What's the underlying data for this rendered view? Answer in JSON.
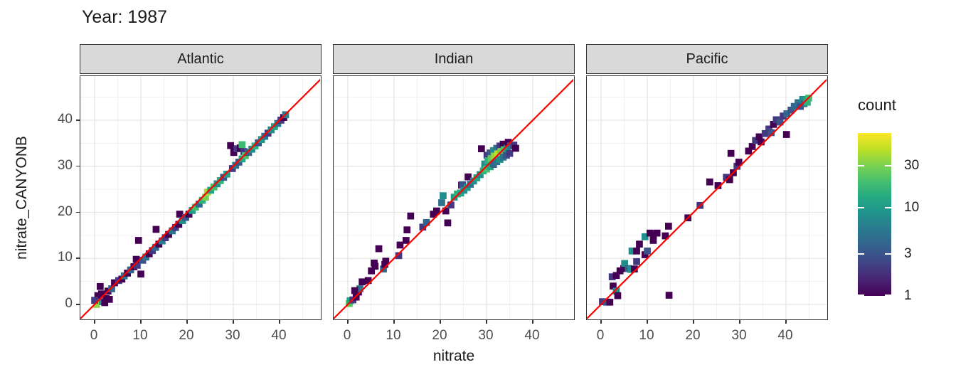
{
  "title": "Year: 1987",
  "chart_data": {
    "type": "heatmap",
    "subtype": "geom_bin2d facet scatter vs identity line",
    "title": "Year: 1987",
    "xlabel": "nitrate",
    "ylabel": "nitrate_CANYONB",
    "x_ticks": [
      0,
      10,
      20,
      30,
      40
    ],
    "y_ticks": [
      0,
      10,
      20,
      30,
      40
    ],
    "x_minor_ticks": [
      5,
      15,
      25,
      35,
      45
    ],
    "y_minor_ticks": [
      5,
      15,
      25,
      35,
      45
    ],
    "x_range": [
      -3.1,
      49.2
    ],
    "y_range": [
      -3.6,
      49.6
    ],
    "grid": true,
    "bin_size": 1.5,
    "identity_line": {
      "slope": 1,
      "intercept": 0,
      "color": "#ff0000"
    },
    "legend": {
      "title": "count",
      "position": "right",
      "scale": "log",
      "ticks": [
        30,
        10,
        3,
        1
      ],
      "min": 1,
      "max": 70
    },
    "viridis_palette": [
      "#440154",
      "#482475",
      "#414487",
      "#35608d",
      "#2a788e",
      "#21918c",
      "#22a884",
      "#44bf70",
      "#7ad151",
      "#bddf26",
      "#fde725"
    ],
    "panels": [
      {
        "name": "Atlantic",
        "bins": [
          [
            0.4,
            0.0,
            35
          ],
          [
            1.7,
            0.6,
            8
          ],
          [
            0.7,
            1.9,
            1
          ],
          [
            1.2,
            3.9,
            1
          ],
          [
            0.0,
            0.9,
            2
          ],
          [
            1.5,
            2.3,
            1
          ],
          [
            2.2,
            0.4,
            1
          ],
          [
            2.5,
            1.3,
            1
          ],
          [
            3.2,
            1.1,
            1
          ],
          [
            2.9,
            2.9,
            1
          ],
          [
            3.7,
            3.4,
            4
          ],
          [
            4.3,
            4.7,
            1
          ],
          [
            5.2,
            5.2,
            2
          ],
          [
            5.9,
            5.5,
            1
          ],
          [
            6.4,
            6.2,
            5
          ],
          [
            7.1,
            6.8,
            1
          ],
          [
            7.8,
            7.5,
            4
          ],
          [
            8.5,
            8.2,
            1
          ],
          [
            9.2,
            8.5,
            2
          ],
          [
            9.0,
            9.8,
            1
          ],
          [
            9.5,
            13.9,
            1
          ],
          [
            10.0,
            6.6,
            1
          ],
          [
            10.4,
            9.6,
            3
          ],
          [
            11.1,
            10.3,
            5
          ],
          [
            11.8,
            11.0,
            1
          ],
          [
            12.5,
            11.7,
            2
          ],
          [
            13.2,
            12.4,
            4
          ],
          [
            13.3,
            16.3,
            1
          ],
          [
            13.9,
            13.1,
            1
          ],
          [
            14.6,
            13.8,
            6
          ],
          [
            15.3,
            14.5,
            2
          ],
          [
            16.0,
            15.2,
            1
          ],
          [
            16.8,
            16.0,
            5
          ],
          [
            17.5,
            16.7,
            2
          ],
          [
            18.2,
            17.4,
            1
          ],
          [
            18.4,
            19.6,
            1
          ],
          [
            19.0,
            18.2,
            8
          ],
          [
            19.7,
            18.9,
            3
          ],
          [
            20.4,
            19.6,
            1
          ],
          [
            21.1,
            20.4,
            10
          ],
          [
            21.8,
            21.1,
            20
          ],
          [
            22.6,
            21.8,
            4
          ],
          [
            23.3,
            22.6,
            15
          ],
          [
            24.0,
            23.3,
            30
          ],
          [
            24.4,
            24.4,
            40
          ],
          [
            25.1,
            24.8,
            12
          ],
          [
            25.8,
            25.5,
            20
          ],
          [
            26.5,
            26.2,
            8
          ],
          [
            27.2,
            26.9,
            15
          ],
          [
            27.9,
            27.6,
            3
          ],
          [
            28.6,
            28.3,
            10
          ],
          [
            29.8,
            29.5,
            2
          ],
          [
            30.5,
            30.2,
            5
          ],
          [
            29.4,
            34.5,
            1
          ],
          [
            30.1,
            33.0,
            1
          ],
          [
            30.8,
            33.8,
            2
          ],
          [
            31.5,
            34.0,
            1
          ],
          [
            31.9,
            34.7,
            18
          ],
          [
            31.2,
            30.9,
            3
          ],
          [
            31.9,
            31.6,
            12
          ],
          [
            32.3,
            33.2,
            2
          ],
          [
            32.6,
            32.3,
            20
          ],
          [
            33.3,
            33.0,
            4
          ],
          [
            34.0,
            33.7,
            8
          ],
          [
            34.7,
            34.4,
            15
          ],
          [
            35.4,
            35.1,
            3
          ],
          [
            36.1,
            35.8,
            10
          ],
          [
            36.8,
            36.5,
            5
          ],
          [
            37.5,
            37.2,
            2
          ],
          [
            38.2,
            37.9,
            8
          ],
          [
            38.9,
            38.6,
            12
          ],
          [
            39.6,
            39.3,
            5
          ],
          [
            40.3,
            40.0,
            2
          ],
          [
            40.9,
            40.6,
            1
          ],
          [
            41.3,
            41.2,
            6
          ]
        ]
      },
      {
        "name": "Indian",
        "bins": [
          [
            0.3,
            0.2,
            25
          ],
          [
            0.5,
            0.8,
            12
          ],
          [
            1.1,
            1.0,
            2
          ],
          [
            1.8,
            1.6,
            1
          ],
          [
            2.3,
            2.7,
            1
          ],
          [
            2.6,
            3.4,
            5
          ],
          [
            1.5,
            3.0,
            1
          ],
          [
            3.1,
            4.9,
            1
          ],
          [
            4.4,
            5.2,
            1
          ],
          [
            5.1,
            7.3,
            1
          ],
          [
            5.7,
            9.0,
            1
          ],
          [
            5.9,
            8.3,
            1
          ],
          [
            6.7,
            12.1,
            1
          ],
          [
            7.7,
            7.7,
            4
          ],
          [
            8.0,
            8.7,
            1
          ],
          [
            8.2,
            9.4,
            1
          ],
          [
            11.0,
            10.6,
            2
          ],
          [
            11.3,
            12.9,
            1
          ],
          [
            12.6,
            13.9,
            1
          ],
          [
            12.8,
            16.2,
            1
          ],
          [
            13.6,
            19.2,
            1
          ],
          [
            16.2,
            16.8,
            2
          ],
          [
            17.0,
            17.8,
            4
          ],
          [
            18.5,
            19.6,
            1
          ],
          [
            19.2,
            20.3,
            1
          ],
          [
            20.3,
            22.1,
            5
          ],
          [
            20.6,
            23.6,
            8
          ],
          [
            21.2,
            20.3,
            1
          ],
          [
            21.6,
            17.7,
            1
          ],
          [
            22.3,
            21.6,
            2
          ],
          [
            23.0,
            23.3,
            10
          ],
          [
            23.7,
            24.0,
            15
          ],
          [
            24.4,
            24.2,
            12
          ],
          [
            24.6,
            25.9,
            1
          ],
          [
            24.8,
            26.0,
            3
          ],
          [
            25.1,
            24.8,
            8
          ],
          [
            25.8,
            25.4,
            10
          ],
          [
            26.0,
            27.7,
            1
          ],
          [
            26.5,
            26.1,
            5
          ],
          [
            27.2,
            26.8,
            8
          ],
          [
            27.9,
            27.5,
            12
          ],
          [
            28.6,
            28.2,
            8
          ],
          [
            28.9,
            33.8,
            1
          ],
          [
            29.3,
            29.0,
            15
          ],
          [
            29.6,
            30.5,
            8
          ],
          [
            30.0,
            29.4,
            20
          ],
          [
            30.1,
            32.4,
            2
          ],
          [
            30.3,
            31.2,
            15
          ],
          [
            30.8,
            29.9,
            12
          ],
          [
            30.8,
            32.9,
            3
          ],
          [
            31.0,
            31.7,
            25
          ],
          [
            31.5,
            30.4,
            4
          ],
          [
            31.5,
            33.4,
            8
          ],
          [
            31.7,
            32.2,
            35
          ],
          [
            32.2,
            31.0,
            5
          ],
          [
            32.2,
            33.9,
            5
          ],
          [
            32.4,
            32.7,
            45
          ],
          [
            32.9,
            31.5,
            8
          ],
          [
            32.9,
            34.4,
            2
          ],
          [
            33.1,
            33.2,
            30
          ],
          [
            33.6,
            32.0,
            5
          ],
          [
            33.6,
            34.8,
            1
          ],
          [
            33.8,
            33.6,
            20
          ],
          [
            34.3,
            32.4,
            3
          ],
          [
            34.5,
            34.0,
            10
          ],
          [
            34.7,
            35.2,
            1
          ],
          [
            35.0,
            32.8,
            2
          ],
          [
            35.2,
            34.4,
            5
          ],
          [
            35.9,
            34.6,
            2
          ],
          [
            36.3,
            33.9,
            1
          ]
        ]
      },
      {
        "name": "Pacific",
        "bins": [
          [
            0.3,
            0.6,
            2
          ],
          [
            1.2,
            0.5,
            3
          ],
          [
            1.9,
            0.5,
            1
          ],
          [
            2.6,
            4.0,
            1
          ],
          [
            3.3,
            2.9,
            8
          ],
          [
            3.6,
            1.9,
            1
          ],
          [
            2.4,
            6.0,
            2
          ],
          [
            3.3,
            6.3,
            1
          ],
          [
            4.1,
            7.3,
            1
          ],
          [
            4.9,
            7.8,
            1
          ],
          [
            5.1,
            8.9,
            8
          ],
          [
            5.9,
            7.8,
            4
          ],
          [
            6.4,
            7.6,
            8
          ],
          [
            7.2,
            7.7,
            1
          ],
          [
            7.7,
            9.3,
            2
          ],
          [
            6.7,
            11.6,
            8
          ],
          [
            7.7,
            11.6,
            1
          ],
          [
            8.3,
            13.1,
            1
          ],
          [
            9.5,
            10.8,
            1
          ],
          [
            10.0,
            11.6,
            3
          ],
          [
            9.5,
            14.7,
            8
          ],
          [
            10.6,
            15.5,
            1
          ],
          [
            11.3,
            13.9,
            1
          ],
          [
            11.3,
            15.0,
            1
          ],
          [
            12.1,
            15.5,
            1
          ],
          [
            13.9,
            14.9,
            1
          ],
          [
            14.6,
            17.0,
            1
          ],
          [
            14.7,
            2.0,
            1
          ],
          [
            18.8,
            18.8,
            1
          ],
          [
            21.4,
            21.5,
            2
          ],
          [
            23.5,
            26.6,
            1
          ],
          [
            25.3,
            25.8,
            1
          ],
          [
            27.1,
            27.6,
            2
          ],
          [
            27.8,
            27.1,
            1
          ],
          [
            28.6,
            28.6,
            1
          ],
          [
            29.4,
            30.0,
            2
          ],
          [
            29.8,
            30.9,
            1
          ],
          [
            28.1,
            32.8,
            1
          ],
          [
            31.9,
            33.3,
            1
          ],
          [
            32.7,
            34.3,
            1
          ],
          [
            33.4,
            35.6,
            2
          ],
          [
            34.2,
            36.4,
            1
          ],
          [
            34.6,
            35.3,
            1
          ],
          [
            35.5,
            37.1,
            2
          ],
          [
            36.3,
            38.1,
            2
          ],
          [
            36.8,
            37.3,
            3
          ],
          [
            37.3,
            39.1,
            1
          ],
          [
            37.9,
            40.1,
            2
          ],
          [
            38.7,
            39.6,
            3
          ],
          [
            39.4,
            40.9,
            2
          ],
          [
            40.1,
            36.9,
            1
          ],
          [
            40.2,
            41.4,
            4
          ],
          [
            41.1,
            42.2,
            3
          ],
          [
            41.8,
            43.0,
            4
          ],
          [
            42.6,
            43.8,
            5
          ],
          [
            43.1,
            43.0,
            3
          ],
          [
            43.6,
            44.5,
            8
          ],
          [
            43.9,
            43.6,
            4
          ],
          [
            44.4,
            44.3,
            10
          ],
          [
            44.6,
            43.9,
            15
          ],
          [
            44.9,
            44.8,
            18
          ]
        ]
      }
    ]
  },
  "colors": {
    "strip_fill": "#d9d9d9",
    "panel_border": "#333333",
    "grid_major": "#e5e5e5",
    "grid_minor": "#f0f0f0",
    "axis_text": "#4d4d4d",
    "abline": "#ff0000"
  }
}
